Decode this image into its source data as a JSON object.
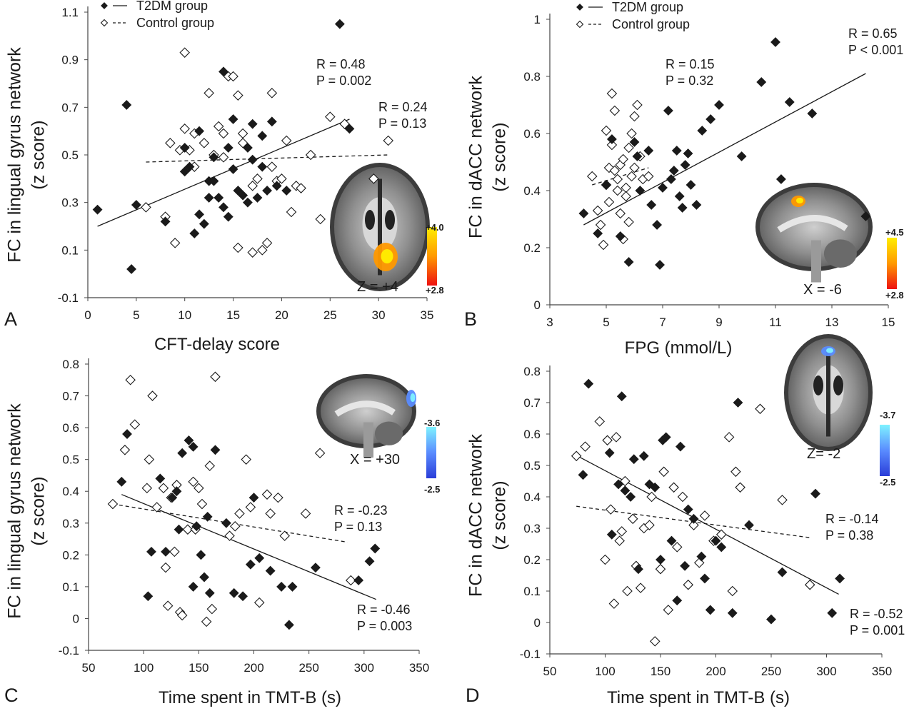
{
  "chart_data": [
    {
      "panel": "A",
      "type": "scatter",
      "xlabel": "CFT-delay score",
      "ylabel_line1": "FC in lingual gyrus network",
      "ylabel_line2": "(z score)",
      "xlim": [
        0,
        35
      ],
      "ylim": [
        -0.1,
        1.1
      ],
      "xticks": [
        0,
        5,
        10,
        15,
        20,
        25,
        30,
        35
      ],
      "yticks": [
        -0.1,
        0.1,
        0.3,
        0.5,
        0.7,
        0.9,
        1.1
      ],
      "ytick_labels": [
        "-0.1",
        "0.1",
        "0.3",
        "0.5",
        "0.7",
        "0.9",
        "1.1"
      ],
      "legend": {
        "placement": "top-left",
        "entries": [
          "T2DM group",
          "Control group"
        ]
      },
      "series": [
        {
          "name": "T2DM group",
          "marker": "filled-diamond",
          "x": [
            1,
            4,
            4.5,
            5,
            8,
            10,
            10,
            10.5,
            11,
            11.5,
            11.5,
            12,
            12.5,
            12.5,
            13,
            13,
            13.5,
            14,
            14,
            14.5,
            14.5,
            15,
            15,
            15.5,
            16,
            16.5,
            16.5,
            17,
            17,
            17.5,
            18,
            18,
            18.5,
            19,
            19.5,
            20.5,
            26,
            27
          ],
          "y": [
            0.27,
            0.71,
            0.02,
            0.29,
            0.22,
            0.53,
            0.43,
            0.45,
            0.17,
            0.6,
            0.25,
            0.21,
            0.39,
            0.32,
            0.49,
            0.39,
            0.32,
            0.85,
            0.28,
            0.53,
            0.24,
            0.65,
            0.44,
            0.35,
            0.33,
            0.53,
            0.3,
            0.63,
            0.48,
            0.32,
            0.45,
            0.58,
            0.35,
            0.64,
            0.37,
            0.35,
            1.05,
            0.61
          ],
          "fit": {
            "x": [
              1,
              27
            ],
            "y": [
              0.2,
              0.65
            ],
            "style": "solid",
            "R": "R = 0.48",
            "P": "P = 0.002"
          }
        },
        {
          "name": "Control group",
          "marker": "open-diamond",
          "x": [
            6,
            8,
            8.5,
            9,
            9.5,
            10,
            10,
            10.5,
            11,
            11,
            12,
            12.5,
            13,
            13.5,
            14,
            14,
            14.5,
            15,
            15.5,
            15.5,
            16,
            16,
            17,
            17,
            17.5,
            18,
            18.5,
            19,
            19,
            19.5,
            20,
            20.5,
            21,
            21.5,
            22,
            23,
            24,
            25,
            26.5,
            29.5,
            31
          ],
          "y": [
            0.28,
            0.24,
            0.55,
            0.13,
            0.52,
            0.61,
            0.93,
            0.52,
            0.45,
            0.59,
            0.55,
            0.76,
            0.5,
            0.62,
            0.49,
            0.59,
            0.83,
            0.83,
            0.75,
            0.11,
            0.55,
            0.59,
            0.37,
            0.09,
            0.4,
            0.1,
            0.13,
            0.45,
            0.76,
            0.39,
            0.4,
            0.56,
            0.26,
            0.37,
            0.36,
            0.5,
            0.23,
            0.66,
            0.63,
            0.4,
            0.56
          ],
          "fit": {
            "x": [
              6,
              31
            ],
            "y": [
              0.47,
              0.5
            ],
            "style": "dashed",
            "R": "R = 0.24",
            "P": "P = 0.13"
          }
        }
      ],
      "inset": {
        "label": "Z = +4",
        "colorbar_top": "+4.0",
        "colorbar_bottom": "+2.8",
        "colorbar_colors": [
          "#ffee00",
          "#ff9900",
          "#ee1111"
        ]
      }
    },
    {
      "panel": "B",
      "type": "scatter",
      "xlabel": "FPG (mmol/L)",
      "ylabel_line1": "FC in dACC network",
      "ylabel_line2": "(z score)",
      "xlim": [
        3,
        15
      ],
      "ylim": [
        0,
        1
      ],
      "xticks": [
        3,
        5,
        7,
        9,
        11,
        13,
        15
      ],
      "yticks": [
        0,
        0.2,
        0.4,
        0.6,
        0.8,
        1
      ],
      "ytick_labels": [
        "0",
        "0.2",
        "0.4",
        "0.6",
        "0.8",
        "1"
      ],
      "legend": {
        "placement": "top-left",
        "entries": [
          "T2DM group",
          "Control group"
        ]
      },
      "series": [
        {
          "name": "T2DM group",
          "marker": "filled-diamond",
          "x": [
            4.2,
            4.7,
            5.0,
            5.2,
            5.5,
            5.8,
            6.0,
            6.1,
            6.2,
            6.5,
            6.6,
            6.8,
            6.9,
            7.0,
            7.2,
            7.3,
            7.4,
            7.5,
            7.6,
            7.7,
            7.8,
            7.9,
            8.0,
            8.2,
            8.4,
            8.7,
            9.0,
            9.8,
            10.5,
            11.0,
            11.2,
            11.5,
            12.3,
            14.2
          ],
          "y": [
            0.32,
            0.25,
            0.42,
            0.58,
            0.24,
            0.15,
            0.57,
            0.52,
            0.4,
            0.54,
            0.35,
            0.28,
            0.14,
            0.41,
            0.68,
            0.44,
            0.47,
            0.54,
            0.38,
            0.34,
            0.49,
            0.53,
            0.42,
            0.35,
            0.61,
            0.65,
            0.7,
            0.52,
            0.78,
            0.92,
            0.44,
            0.71,
            0.67,
            0.31
          ],
          "fit": {
            "x": [
              4.2,
              14.2
            ],
            "y": [
              0.28,
              0.81
            ],
            "style": "solid",
            "R": "R = 0.65",
            "P": "P < 0.001"
          }
        },
        {
          "name": "Control group",
          "marker": "open-diamond",
          "x": [
            4.5,
            4.7,
            4.8,
            4.9,
            5.0,
            5.0,
            5.1,
            5.1,
            5.2,
            5.2,
            5.3,
            5.3,
            5.4,
            5.4,
            5.5,
            5.5,
            5.6,
            5.6,
            5.7,
            5.7,
            5.8,
            5.8,
            5.9,
            5.9,
            6.0,
            6.0,
            6.1,
            6.2,
            6.3,
            6.5
          ],
          "y": [
            0.45,
            0.33,
            0.28,
            0.21,
            0.61,
            0.42,
            0.48,
            0.36,
            0.74,
            0.56,
            0.68,
            0.47,
            0.4,
            0.44,
            0.49,
            0.32,
            0.23,
            0.51,
            0.41,
            0.38,
            0.29,
            0.55,
            0.45,
            0.6,
            0.66,
            0.48,
            0.7,
            0.52,
            0.44,
            0.45
          ],
          "fit": {
            "x": [
              4.5,
              6.5
            ],
            "y": [
              0.42,
              0.48
            ],
            "style": "dashed",
            "R": "R = 0.15",
            "P": "P = 0.32"
          }
        }
      ],
      "inset": {
        "label": "X = -6",
        "colorbar_top": "+4.5",
        "colorbar_bottom": "+2.8",
        "colorbar_colors": [
          "#ffee00",
          "#ff9900",
          "#ee1111"
        ]
      }
    },
    {
      "panel": "C",
      "type": "scatter",
      "xlabel": "Time spent in TMT-B (s)",
      "ylabel_line1": "FC in lingual gyrus network",
      "ylabel_line2": "(z score)",
      "xlim": [
        50,
        350
      ],
      "ylim": [
        -0.1,
        0.8
      ],
      "xticks": [
        50,
        100,
        150,
        200,
        250,
        300,
        350
      ],
      "yticks": [
        -0.1,
        0,
        0.1,
        0.2,
        0.3,
        0.4,
        0.5,
        0.6,
        0.7,
        0.8
      ],
      "ytick_labels": [
        "-0.1",
        "0",
        "0.1",
        "0.2",
        "0.3",
        "0.4",
        "0.5",
        "0.6",
        "0.7",
        "0.8"
      ],
      "series": [
        {
          "name": "T2DM group",
          "marker": "filled-diamond",
          "x": [
            80,
            85,
            104,
            107,
            115,
            120,
            126,
            130,
            132,
            135,
            141,
            145,
            145,
            148,
            152,
            155,
            158,
            160,
            165,
            175,
            182,
            190,
            197,
            200,
            205,
            215,
            225,
            232,
            235,
            256,
            295,
            305,
            310
          ],
          "y": [
            0.43,
            0.58,
            0.07,
            0.21,
            0.44,
            0.21,
            0.38,
            0.4,
            0.28,
            0.52,
            0.56,
            0.1,
            0.54,
            0.29,
            0.2,
            0.13,
            0.32,
            0.08,
            0.53,
            0.3,
            0.08,
            0.07,
            0.17,
            0.38,
            0.19,
            0.15,
            0.1,
            -0.02,
            0.1,
            0.16,
            0.12,
            0.18,
            0.22
          ],
          "fit": {
            "x": [
              80,
              311
            ],
            "y": [
              0.39,
              0.06
            ],
            "style": "solid",
            "R": "R = -0.46",
            "P": "P = 0.003"
          }
        },
        {
          "name": "Control group",
          "marker": "open-diamond",
          "x": [
            72,
            83,
            88,
            92,
            103,
            105,
            108,
            112,
            118,
            120,
            122,
            125,
            128,
            130,
            133,
            135,
            140,
            145,
            147,
            150,
            153,
            157,
            160,
            162,
            165,
            178,
            183,
            187,
            193,
            197,
            205,
            212,
            215,
            222,
            228,
            247,
            260,
            288
          ],
          "y": [
            0.36,
            0.53,
            0.75,
            0.61,
            0.41,
            0.5,
            0.7,
            0.35,
            0.41,
            0.16,
            0.04,
            0.38,
            0.21,
            0.42,
            0.02,
            0.01,
            0.28,
            0.43,
            0.28,
            0.41,
            0.36,
            -0.01,
            0.48,
            0.03,
            0.76,
            0.26,
            0.29,
            0.33,
            0.5,
            0.35,
            0.05,
            0.39,
            0.33,
            0.38,
            0.26,
            0.33,
            0.52,
            0.12
          ],
          "fit": {
            "x": [
              72,
              285
            ],
            "y": [
              0.36,
              0.24
            ],
            "style": "dashed",
            "R": "R = -0.23",
            "P": "P = 0.13"
          }
        }
      ],
      "inset": {
        "label": "X = +30",
        "colorbar_top": "-3.6",
        "colorbar_bottom": "-2.5",
        "colorbar_colors": [
          "#7ff2ff",
          "#5a8cff",
          "#2a3dd8"
        ]
      }
    },
    {
      "panel": "D",
      "type": "scatter",
      "xlabel": "Time spent in TMT-B (s)",
      "ylabel_line1": "FC in dACC network",
      "ylabel_line2": "(z score)",
      "xlim": [
        50,
        350
      ],
      "ylim": [
        -0.1,
        0.8
      ],
      "xticks": [
        50,
        100,
        150,
        200,
        250,
        300,
        350
      ],
      "yticks": [
        -0.1,
        0,
        0.1,
        0.2,
        0.3,
        0.4,
        0.5,
        0.6,
        0.7,
        0.8
      ],
      "ytick_labels": [
        "-0.1",
        "0",
        "0.1",
        "0.2",
        "0.3",
        "0.4",
        "0.5",
        "0.6",
        "0.7",
        "0.8"
      ],
      "series": [
        {
          "name": "T2DM group",
          "marker": "filled-diamond",
          "x": [
            80,
            85,
            104,
            106,
            112,
            115,
            118,
            123,
            126,
            130,
            135,
            140,
            145,
            150,
            152,
            155,
            160,
            165,
            168,
            172,
            175,
            180,
            187,
            190,
            195,
            200,
            205,
            215,
            220,
            230,
            250,
            260,
            290,
            305,
            312
          ],
          "y": [
            0.47,
            0.76,
            0.54,
            0.28,
            0.44,
            0.72,
            0.42,
            0.4,
            0.52,
            0.17,
            0.53,
            0.44,
            0.43,
            0.2,
            0.58,
            0.59,
            0.26,
            0.07,
            0.56,
            0.18,
            0.36,
            0.33,
            0.21,
            0.14,
            0.04,
            0.26,
            0.24,
            0.03,
            0.7,
            0.31,
            0.01,
            0.16,
            0.41,
            0.03,
            0.14
          ],
          "fit": {
            "x": [
              75,
              311
            ],
            "y": [
              0.53,
              0.09
            ],
            "style": "solid",
            "R": "R = -0.52",
            "P": "P = 0.001"
          }
        },
        {
          "name": "Control group",
          "marker": "open-diamond",
          "x": [
            74,
            82,
            95,
            100,
            102,
            105,
            108,
            110,
            113,
            115,
            118,
            120,
            125,
            128,
            132,
            135,
            140,
            142,
            145,
            150,
            153,
            157,
            162,
            165,
            170,
            175,
            180,
            185,
            190,
            198,
            205,
            212,
            215,
            218,
            222,
            240,
            260,
            285
          ],
          "y": [
            0.53,
            0.56,
            0.64,
            0.2,
            0.58,
            0.36,
            0.06,
            0.59,
            0.26,
            0.29,
            0.45,
            0.1,
            0.33,
            0.18,
            0.11,
            0.3,
            0.31,
            0.4,
            -0.06,
            0.17,
            0.48,
            0.04,
            0.43,
            0.24,
            0.4,
            0.12,
            0.31,
            0.19,
            0.34,
            0.26,
            0.28,
            0.59,
            0.1,
            0.48,
            0.43,
            0.68,
            0.39,
            0.12
          ],
          "fit": {
            "x": [
              74,
              285
            ],
            "y": [
              0.37,
              0.27
            ],
            "style": "dashed",
            "R": "R = -0.14",
            "P": "P = 0.38"
          }
        }
      ],
      "inset": {
        "label": "Z= -2",
        "colorbar_top": "-3.7",
        "colorbar_bottom": "-2.5",
        "colorbar_colors": [
          "#7ff2ff",
          "#5a8cff",
          "#2a3dd8"
        ]
      }
    }
  ]
}
